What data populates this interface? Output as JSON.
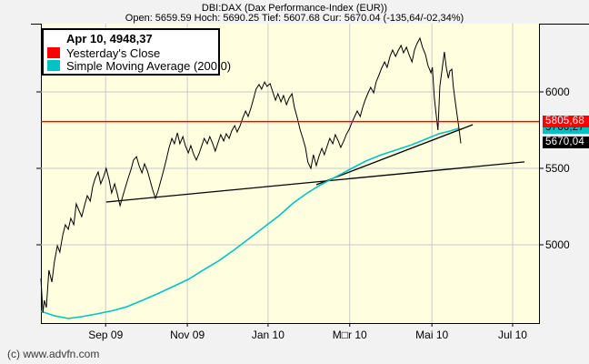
{
  "header": {
    "title": "DBI:DAX (Dax Performance-Index (EUR))",
    "subtitle": "Open: 5659.59 Hoch: 5690.25 Tief: 5607.68 Cur: 5670.04 (-135,64/-02,34%)"
  },
  "legend": {
    "title": "Apr 10, 4948,37",
    "items": [
      {
        "label": "Yesterday's Close",
        "color": "#ff0000"
      },
      {
        "label": "Simple Moving Average (200,0)",
        "color": "#00c2c6"
      }
    ]
  },
  "watermark": "(c) www.advfn.com",
  "colors": {
    "plot_bg": "#ffffdf",
    "grid": "#c9c9c9",
    "price": "#000000",
    "sma": "#00c2c6",
    "yesterday_close": "#ff0000"
  },
  "chart_data": {
    "type": "line",
    "title": "DBI:DAX (Dax Performance-Index (EUR))",
    "x_axis": {
      "ticks": [
        {
          "label": "Sep 09",
          "f": 0.13
        },
        {
          "label": "Nov 09",
          "f": 0.294
        },
        {
          "label": "Jan 10",
          "f": 0.456
        },
        {
          "label": "M□r 10",
          "f": 0.62
        },
        {
          "label": "Mai 10",
          "f": 0.785
        },
        {
          "label": "Jul 10",
          "f": 0.947
        }
      ]
    },
    "y_axis": {
      "ticks": [
        6000,
        5500,
        5000
      ],
      "range": [
        4488,
        6446
      ],
      "grid": true
    },
    "reference_line": {
      "name": "yesterdays-close-line",
      "value": 5805.68,
      "color": "#ff0000",
      "w": 1.5
    },
    "price_markers": [
      {
        "name": "sma-value-box",
        "label": "5766,27",
        "value": 5766.27,
        "bg": "#00c2c6",
        "fg": "#000000"
      },
      {
        "name": "yesterday-close-box",
        "label": "5805,68",
        "value": 5805.68,
        "bg": "#ff0000",
        "fg": "#ffffff"
      },
      {
        "name": "current-price-box",
        "label": "5670,04",
        "value": 5670.04,
        "bg": "#000000",
        "fg": "#ffffff"
      }
    ],
    "series": [
      {
        "name": "trendline-long",
        "color": "#000000",
        "w": 1.3,
        "points": [
          [
            0.131,
            5280
          ],
          [
            0.971,
            5542
          ]
        ]
      },
      {
        "name": "trendline-steep",
        "color": "#000000",
        "w": 1.3,
        "points": [
          [
            0.553,
            5393
          ],
          [
            0.867,
            5786
          ]
        ]
      },
      {
        "name": "sma-200",
        "color": "#00c2c6",
        "w": 1.6,
        "points": [
          [
            0.0,
            4565
          ],
          [
            0.027,
            4536
          ],
          [
            0.055,
            4518
          ],
          [
            0.082,
            4530
          ],
          [
            0.113,
            4548
          ],
          [
            0.146,
            4571
          ],
          [
            0.173,
            4595
          ],
          [
            0.204,
            4637
          ],
          [
            0.234,
            4679
          ],
          [
            0.265,
            4726
          ],
          [
            0.296,
            4774
          ],
          [
            0.325,
            4833
          ],
          [
            0.356,
            4893
          ],
          [
            0.387,
            4964
          ],
          [
            0.416,
            5036
          ],
          [
            0.447,
            5113
          ],
          [
            0.478,
            5190
          ],
          [
            0.507,
            5274
          ],
          [
            0.535,
            5339
          ],
          [
            0.562,
            5393
          ],
          [
            0.593,
            5446
          ],
          [
            0.624,
            5500
          ],
          [
            0.653,
            5548
          ],
          [
            0.684,
            5589
          ],
          [
            0.712,
            5619
          ],
          [
            0.745,
            5655
          ],
          [
            0.776,
            5696
          ],
          [
            0.799,
            5726
          ],
          [
            0.821,
            5744
          ],
          [
            0.839,
            5762
          ]
        ]
      },
      {
        "name": "dax-price",
        "color": "#000000",
        "w": 1,
        "points": [
          [
            0.0,
            4780
          ],
          [
            0.004,
            4556
          ],
          [
            0.007,
            4637
          ],
          [
            0.011,
            4590
          ],
          [
            0.016,
            4834
          ],
          [
            0.022,
            4756
          ],
          [
            0.027,
            4887
          ],
          [
            0.033,
            4994
          ],
          [
            0.038,
            4952
          ],
          [
            0.044,
            5065
          ],
          [
            0.049,
            5131
          ],
          [
            0.055,
            5101
          ],
          [
            0.06,
            5173
          ],
          [
            0.066,
            5131
          ],
          [
            0.071,
            5268
          ],
          [
            0.077,
            5220
          ],
          [
            0.082,
            5184
          ],
          [
            0.088,
            5262
          ],
          [
            0.093,
            5321
          ],
          [
            0.099,
            5286
          ],
          [
            0.104,
            5381
          ],
          [
            0.109,
            5434
          ],
          [
            0.115,
            5476
          ],
          [
            0.12,
            5399
          ],
          [
            0.126,
            5446
          ],
          [
            0.131,
            5500
          ],
          [
            0.137,
            5423
          ],
          [
            0.142,
            5339
          ],
          [
            0.148,
            5399
          ],
          [
            0.153,
            5339
          ],
          [
            0.159,
            5256
          ],
          [
            0.164,
            5315
          ],
          [
            0.17,
            5381
          ],
          [
            0.175,
            5434
          ],
          [
            0.181,
            5494
          ],
          [
            0.186,
            5554
          ],
          [
            0.192,
            5577
          ],
          [
            0.197,
            5518
          ],
          [
            0.203,
            5470
          ],
          [
            0.208,
            5530
          ],
          [
            0.214,
            5482
          ],
          [
            0.219,
            5423
          ],
          [
            0.224,
            5363
          ],
          [
            0.23,
            5304
          ],
          [
            0.235,
            5351
          ],
          [
            0.241,
            5423
          ],
          [
            0.246,
            5482
          ],
          [
            0.252,
            5560
          ],
          [
            0.257,
            5631
          ],
          [
            0.263,
            5696
          ],
          [
            0.268,
            5661
          ],
          [
            0.274,
            5732
          ],
          [
            0.279,
            5661
          ],
          [
            0.285,
            5708
          ],
          [
            0.29,
            5649
          ],
          [
            0.296,
            5601
          ],
          [
            0.301,
            5649
          ],
          [
            0.307,
            5589
          ],
          [
            0.312,
            5554
          ],
          [
            0.318,
            5601
          ],
          [
            0.323,
            5649
          ],
          [
            0.328,
            5696
          ],
          [
            0.334,
            5661
          ],
          [
            0.339,
            5708
          ],
          [
            0.345,
            5661
          ],
          [
            0.35,
            5613
          ],
          [
            0.356,
            5672
          ],
          [
            0.361,
            5720
          ],
          [
            0.367,
            5679
          ],
          [
            0.372,
            5726
          ],
          [
            0.378,
            5696
          ],
          [
            0.383,
            5744
          ],
          [
            0.389,
            5780
          ],
          [
            0.394,
            5738
          ],
          [
            0.4,
            5780
          ],
          [
            0.405,
            5827
          ],
          [
            0.411,
            5875
          ],
          [
            0.416,
            5839
          ],
          [
            0.422,
            5899
          ],
          [
            0.427,
            5958
          ],
          [
            0.432,
            6018
          ],
          [
            0.438,
            6048
          ],
          [
            0.443,
            6018
          ],
          [
            0.449,
            6065
          ],
          [
            0.454,
            6036
          ],
          [
            0.46,
            6054
          ],
          [
            0.465,
            6006
          ],
          [
            0.471,
            5946
          ],
          [
            0.476,
            5988
          ],
          [
            0.482,
            5935
          ],
          [
            0.487,
            5976
          ],
          [
            0.493,
            5916
          ],
          [
            0.498,
            5958
          ],
          [
            0.504,
            5988
          ],
          [
            0.509,
            5899
          ],
          [
            0.515,
            5827
          ],
          [
            0.52,
            5756
          ],
          [
            0.526,
            5696
          ],
          [
            0.531,
            5637
          ],
          [
            0.536,
            5541
          ],
          [
            0.542,
            5500
          ],
          [
            0.547,
            5589
          ],
          [
            0.553,
            5518
          ],
          [
            0.558,
            5577
          ],
          [
            0.564,
            5631
          ],
          [
            0.569,
            5589
          ],
          [
            0.575,
            5649
          ],
          [
            0.58,
            5696
          ],
          [
            0.586,
            5661
          ],
          [
            0.591,
            5720
          ],
          [
            0.597,
            5679
          ],
          [
            0.602,
            5637
          ],
          [
            0.608,
            5679
          ],
          [
            0.613,
            5720
          ],
          [
            0.619,
            5756
          ],
          [
            0.624,
            5798
          ],
          [
            0.63,
            5839
          ],
          [
            0.635,
            5875
          ],
          [
            0.641,
            5839
          ],
          [
            0.646,
            5899
          ],
          [
            0.651,
            5946
          ],
          [
            0.657,
            5994
          ],
          [
            0.662,
            6030
          ],
          [
            0.668,
            5994
          ],
          [
            0.673,
            6065
          ],
          [
            0.679,
            6113
          ],
          [
            0.684,
            6155
          ],
          [
            0.69,
            6196
          ],
          [
            0.695,
            6161
          ],
          [
            0.701,
            6232
          ],
          [
            0.706,
            6274
          ],
          [
            0.712,
            6232
          ],
          [
            0.717,
            6268
          ],
          [
            0.723,
            6304
          ],
          [
            0.728,
            6256
          ],
          [
            0.734,
            6292
          ],
          [
            0.739,
            6244
          ],
          [
            0.745,
            6196
          ],
          [
            0.75,
            6274
          ],
          [
            0.755,
            6315
          ],
          [
            0.761,
            6351
          ],
          [
            0.766,
            6292
          ],
          [
            0.772,
            6244
          ],
          [
            0.777,
            6173
          ],
          [
            0.783,
            6125
          ],
          [
            0.786,
            6161
          ],
          [
            0.79,
            5958
          ],
          [
            0.794,
            5839
          ],
          [
            0.797,
            5750
          ],
          [
            0.801,
            6036
          ],
          [
            0.807,
            6185
          ],
          [
            0.81,
            6262
          ],
          [
            0.814,
            6155
          ],
          [
            0.818,
            6089
          ],
          [
            0.821,
            6137
          ],
          [
            0.825,
            6149
          ],
          [
            0.828,
            6036
          ],
          [
            0.832,
            5935
          ],
          [
            0.836,
            5839
          ],
          [
            0.839,
            5768
          ],
          [
            0.843,
            5663
          ]
        ]
      }
    ]
  }
}
